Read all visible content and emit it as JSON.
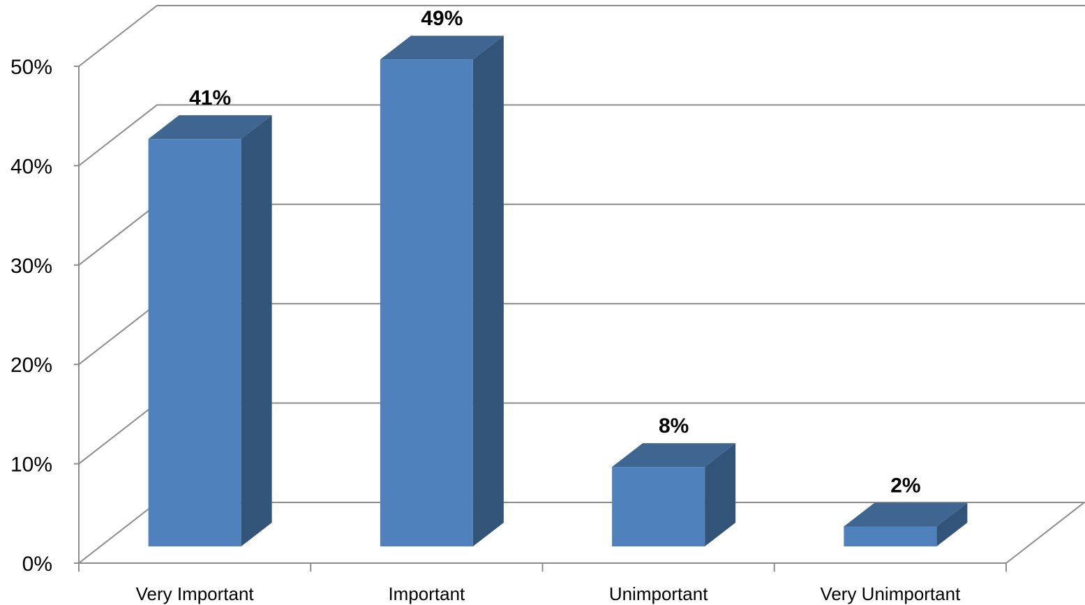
{
  "chart_data": {
    "type": "bar",
    "style": "3d-column",
    "categories": [
      "Very Important",
      "Important",
      "Unimportant",
      "Very Unimportant"
    ],
    "values": [
      41,
      49,
      8,
      2
    ],
    "data_labels": [
      "41%",
      "49%",
      "8%",
      "2%"
    ],
    "ylim": [
      0,
      50
    ],
    "y_ticks": [
      0,
      10,
      20,
      30,
      40,
      50
    ],
    "y_tick_labels": [
      "0%",
      "10%",
      "20%",
      "30%",
      "40%",
      "50%"
    ],
    "grid": true,
    "legend": "none",
    "colors": {
      "bar_front": "#4F81BD",
      "bar_side": "#335479",
      "bar_top": "#3F6591",
      "grid": "#8C8C8C"
    }
  }
}
